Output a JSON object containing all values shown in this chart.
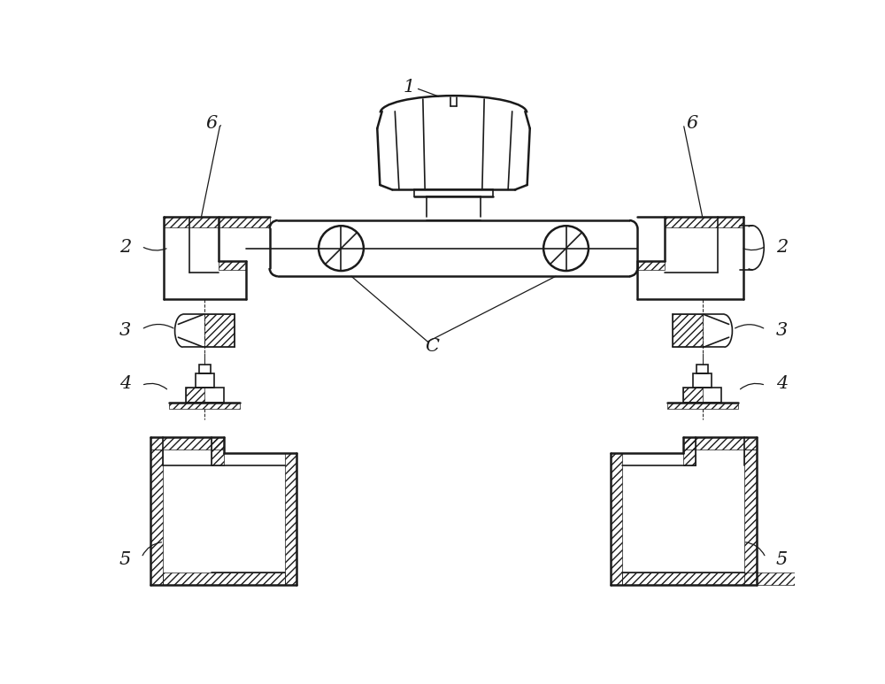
{
  "bg_color": "#ffffff",
  "line_color": "#1a1a1a",
  "lw": 1.2,
  "lw_thick": 1.8,
  "font_size": 15
}
